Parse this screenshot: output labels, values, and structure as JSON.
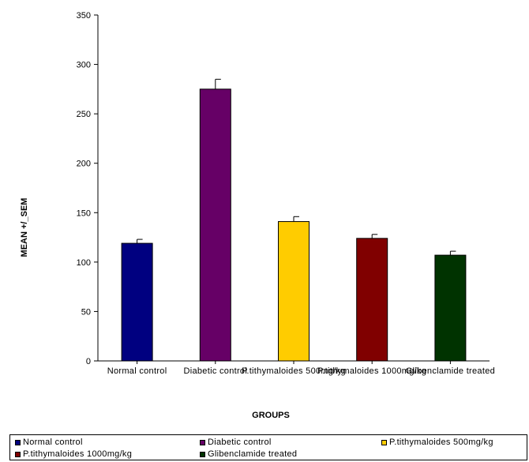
{
  "chart_data": {
    "type": "bar",
    "title": "",
    "xlabel": "GROUPS",
    "ylabel": "MEAN +/_SEM",
    "ylim": [
      0,
      350
    ],
    "yticks": [
      0,
      50,
      100,
      150,
      200,
      250,
      300,
      350
    ],
    "grid": false,
    "legend_position": "bottom",
    "categories": [
      "Normal control",
      "Diabetic control",
      "P.tithymaloides 500mg/kg",
      "P.tithymaloides 1000mg/kg",
      "Glibenclamide treated"
    ],
    "values": [
      119,
      275,
      141,
      124,
      107
    ],
    "errors": [
      4,
      10,
      5,
      4,
      4
    ],
    "colors": [
      "#000080",
      "#660066",
      "#ffcc00",
      "#800000",
      "#003300"
    ]
  }
}
